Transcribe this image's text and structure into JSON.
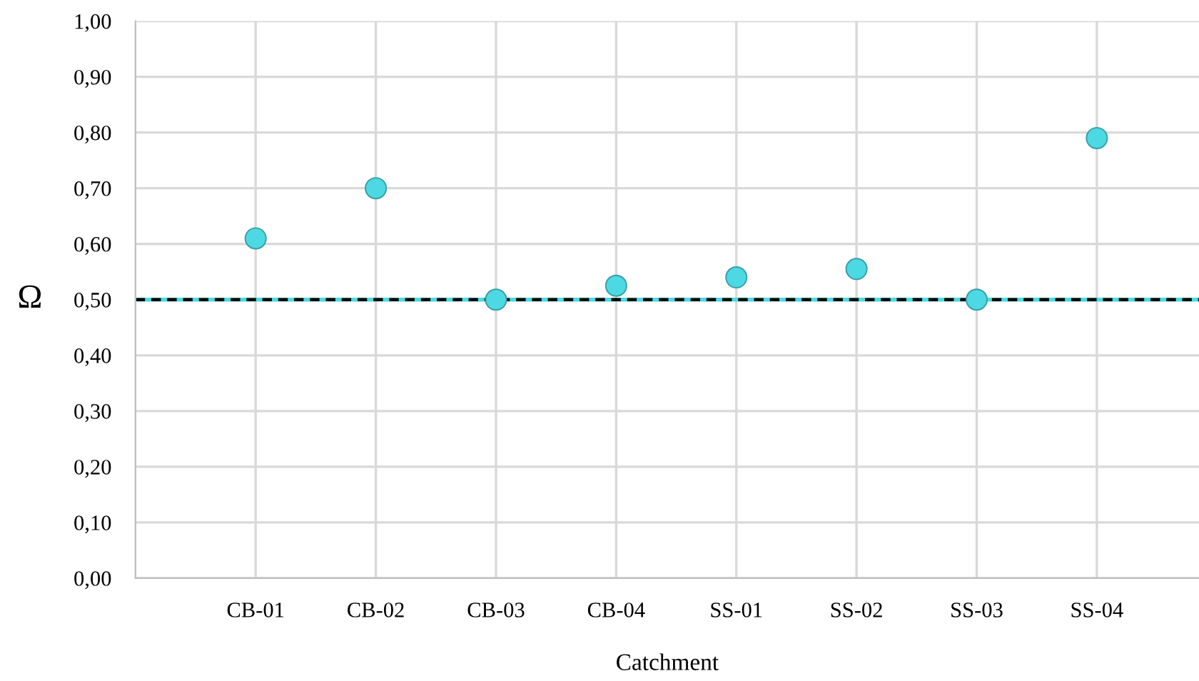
{
  "chart_data": {
    "type": "scatter",
    "xlabel": "Catchment",
    "ylabel": "Ω",
    "categories": [
      "CB-01",
      "CB-02",
      "CB-03",
      "CB-04",
      "SS-01",
      "SS-02",
      "SS-03",
      "SS-04"
    ],
    "values": [
      0.61,
      0.7,
      0.5,
      0.525,
      0.54,
      0.555,
      0.5,
      0.79
    ],
    "color": "#4dd9e3",
    "marker": "circle",
    "ylim": [
      0,
      1
    ],
    "yticks": [
      {
        "value": 0,
        "label": "0,00"
      },
      {
        "value": 0.1,
        "label": "0,10"
      },
      {
        "value": 0.2,
        "label": "0,20"
      },
      {
        "value": 0.3,
        "label": "0,30"
      },
      {
        "value": 0.4,
        "label": "0,40"
      },
      {
        "value": 0.5,
        "label": "0,50"
      },
      {
        "value": 0.6,
        "label": "0,60"
      },
      {
        "value": 0.7,
        "label": "0,70"
      },
      {
        "value": 0.8,
        "label": "0,80"
      },
      {
        "value": 0.9,
        "label": "0,90"
      },
      {
        "value": 1.0,
        "label": "1,00"
      }
    ],
    "ref_lines": [
      {
        "axis": "y",
        "value": 0.5,
        "color": "#4dd9e3",
        "line_style": "solid"
      },
      {
        "axis": "y",
        "value": 0.5,
        "color": "#000000",
        "line_style": "dashed"
      }
    ],
    "grid": true
  }
}
